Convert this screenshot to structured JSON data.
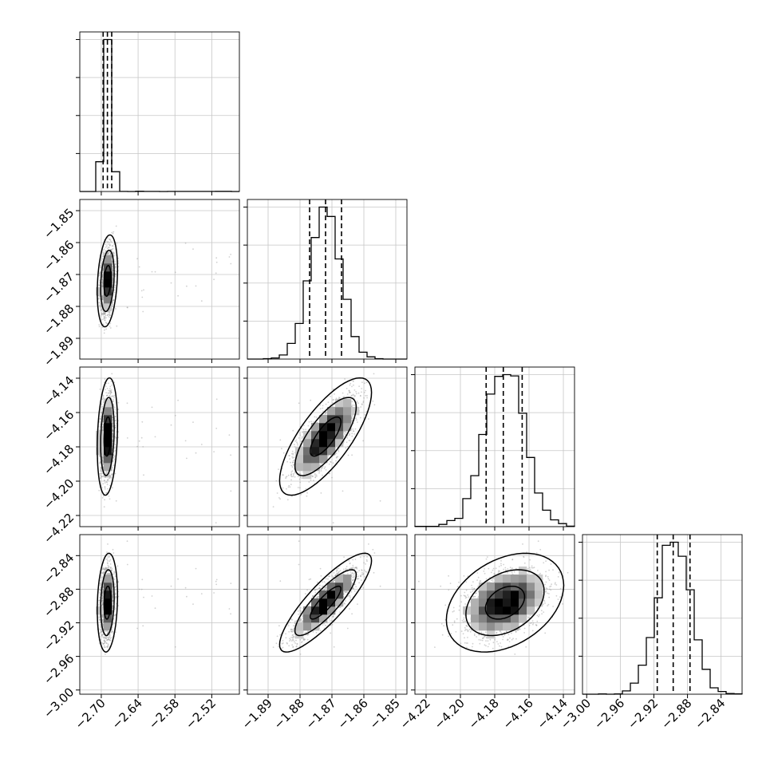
{
  "chart_data": {
    "type": "corner",
    "title": "",
    "params": [
      {
        "range": [
          -2.735,
          -2.475
        ],
        "ticks": [
          -2.7,
          -2.64,
          -2.58,
          -2.52
        ],
        "tick_labels": [
          "−2.70",
          "−2.64",
          "−2.58",
          "−2.52"
        ],
        "mean": -2.69,
        "sd": 0.0055,
        "quantiles": [
          -2.697,
          -2.69,
          -2.683
        ]
      },
      {
        "range": [
          -1.8965,
          -1.8465
        ],
        "ticks": [
          -1.89,
          -1.88,
          -1.87,
          -1.86,
          -1.85
        ],
        "tick_labels": [
          "−1.89",
          "−1.88",
          "−1.87",
          "−1.86",
          "−1.85"
        ],
        "mean": -1.872,
        "sd": 0.0048,
        "quantiles": [
          -1.877,
          -1.872,
          -1.867
        ]
      },
      {
        "range": [
          -4.2265,
          -4.1335
        ],
        "ticks": [
          -4.22,
          -4.2,
          -4.18,
          -4.16,
          -4.14
        ],
        "tick_labels": [
          "−4.22",
          "−4.20",
          "−4.18",
          "−4.16",
          "−4.14"
        ],
        "mean": -4.174,
        "sd": 0.0114,
        "quantiles": [
          -4.185,
          -4.175,
          -4.164
        ]
      },
      {
        "range": [
          -3.005,
          -2.815
        ],
        "ticks": [
          -3.0,
          -2.96,
          -2.92,
          -2.88,
          -2.84
        ],
        "tick_labels": [
          "−3.00",
          "−2.96",
          "−2.92",
          "−2.88",
          "−2.84"
        ],
        "mean": -2.896,
        "sd": 0.0196,
        "quantiles": [
          -2.916,
          -2.897,
          -2.877
        ]
      }
    ],
    "correlations": {
      "0-1": 0.25,
      "0-2": 0.2,
      "0-3": 0.15,
      "1-2": 0.75,
      "1-3": 0.85,
      "2-3": 0.35
    },
    "contour_levels": [
      0.39,
      0.86,
      0.99
    ],
    "histogram_bins": 20,
    "grid": true,
    "colors": {
      "ink": "#000000",
      "points": "#9a9a9a",
      "grid": "#c6c6c6"
    }
  }
}
